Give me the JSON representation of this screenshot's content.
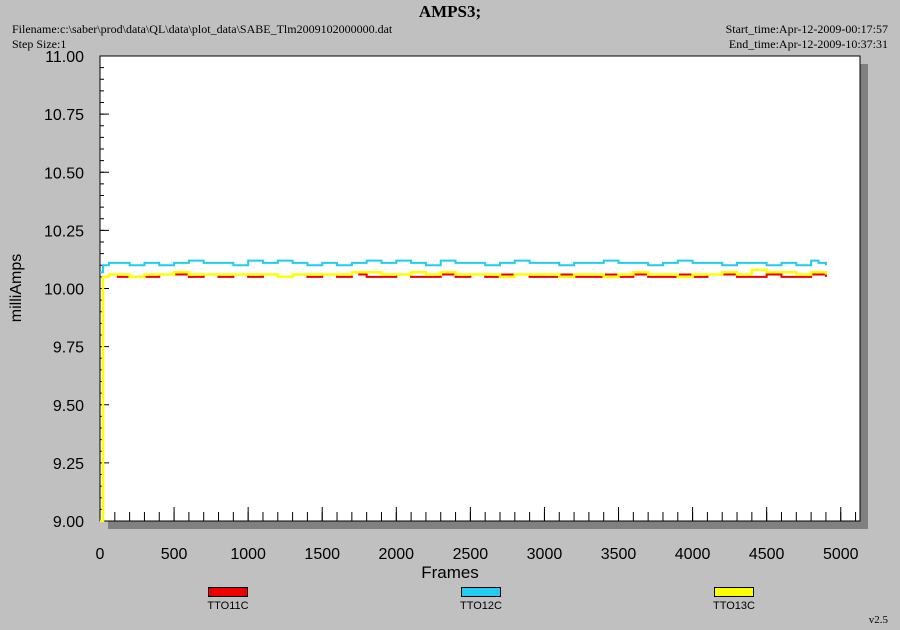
{
  "header": {
    "title": "AMPS3;",
    "filename": "Filename:c:\\saber\\prod\\data\\QL\\data\\plot_data\\SABE_Tlm2009102000000.dat",
    "step_size": "Step Size:1",
    "start_time": "Start_time:Apr-12-2009-00:17:57",
    "end_time": "End_time:Apr-12-2009-10:37:31"
  },
  "footer": {
    "version": "v2.5"
  },
  "colors": {
    "background": "#c0c0c0",
    "plot_area": "#ffffff",
    "shadow": "#808080"
  },
  "chart_data": {
    "type": "line",
    "xlabel": "Frames",
    "ylabel": "milliAmps",
    "xlim": [
      0,
      5130
    ],
    "ylim": [
      9.0,
      11.0
    ],
    "x_ticks": [
      0,
      500,
      1000,
      1500,
      2000,
      2500,
      3000,
      3500,
      4000,
      4500,
      5000
    ],
    "y_ticks": [
      9.0,
      9.25,
      9.5,
      9.75,
      10.0,
      10.25,
      10.5,
      10.75,
      11.0
    ],
    "x_tick_labels": [
      "0",
      "500",
      "1000",
      "1500",
      "2000",
      "2500",
      "3000",
      "3500",
      "4000",
      "4500",
      "5000"
    ],
    "y_tick_labels": [
      "9.00",
      "9.25",
      "9.50",
      "9.75",
      "10.00",
      "10.25",
      "10.50",
      "10.75",
      "11.00"
    ],
    "legend_placement": "bottom",
    "grid": false,
    "series": [
      {
        "name": "TTO11C",
        "color": "#ee0000",
        "x": [
          0,
          20,
          40,
          60,
          120,
          200,
          300,
          400,
          500,
          600,
          700,
          800,
          900,
          1000,
          1100,
          1200,
          1300,
          1400,
          1500,
          1600,
          1700,
          1750,
          1800,
          1900,
          2000,
          2100,
          2200,
          2300,
          2400,
          2500,
          2600,
          2700,
          2800,
          2900,
          3000,
          3100,
          3200,
          3300,
          3400,
          3500,
          3600,
          3700,
          3800,
          3900,
          4000,
          4100,
          4200,
          4300,
          4400,
          4500,
          4600,
          4700,
          4800,
          4900
        ],
        "values": [
          9.0,
          10.05,
          10.05,
          10.06,
          10.05,
          10.05,
          10.05,
          10.06,
          10.06,
          10.05,
          10.06,
          10.05,
          10.06,
          10.05,
          10.06,
          10.05,
          10.06,
          10.05,
          10.06,
          10.05,
          10.07,
          10.06,
          10.05,
          10.05,
          10.06,
          10.05,
          10.05,
          10.06,
          10.05,
          10.06,
          10.05,
          10.06,
          10.06,
          10.05,
          10.05,
          10.06,
          10.05,
          10.05,
          10.06,
          10.05,
          10.06,
          10.05,
          10.05,
          10.06,
          10.05,
          10.06,
          10.06,
          10.05,
          10.05,
          10.06,
          10.05,
          10.05,
          10.06,
          10.05
        ]
      },
      {
        "name": "TTO12C",
        "color": "#22ccee",
        "x": [
          0,
          20,
          40,
          60,
          120,
          200,
          300,
          400,
          500,
          600,
          700,
          800,
          900,
          1000,
          1100,
          1200,
          1300,
          1400,
          1500,
          1600,
          1700,
          1800,
          1900,
          2000,
          2100,
          2200,
          2300,
          2400,
          2500,
          2600,
          2700,
          2800,
          2900,
          3000,
          3100,
          3200,
          3300,
          3400,
          3500,
          3600,
          3700,
          3800,
          3900,
          4000,
          4100,
          4200,
          4300,
          4400,
          4500,
          4600,
          4700,
          4800,
          4850,
          4900
        ],
        "values": [
          10.07,
          10.1,
          10.1,
          10.11,
          10.11,
          10.1,
          10.11,
          10.1,
          10.11,
          10.12,
          10.11,
          10.11,
          10.1,
          10.12,
          10.11,
          10.12,
          10.11,
          10.1,
          10.11,
          10.1,
          10.11,
          10.12,
          10.11,
          10.12,
          10.11,
          10.1,
          10.12,
          10.11,
          10.11,
          10.1,
          10.11,
          10.12,
          10.11,
          10.11,
          10.1,
          10.11,
          10.11,
          10.12,
          10.11,
          10.11,
          10.1,
          10.11,
          10.12,
          10.11,
          10.11,
          10.1,
          10.11,
          10.11,
          10.1,
          10.11,
          10.1,
          10.12,
          10.11,
          10.1
        ]
      },
      {
        "name": "TTO13C",
        "color": "#ffff00",
        "x": [
          0,
          20,
          40,
          60,
          120,
          200,
          300,
          400,
          500,
          600,
          700,
          800,
          900,
          1000,
          1100,
          1200,
          1300,
          1400,
          1500,
          1600,
          1700,
          1800,
          1900,
          2000,
          2100,
          2200,
          2300,
          2400,
          2500,
          2600,
          2700,
          2800,
          2900,
          3000,
          3100,
          3200,
          3300,
          3400,
          3500,
          3600,
          3700,
          3800,
          3900,
          4000,
          4100,
          4200,
          4300,
          4400,
          4500,
          4600,
          4700,
          4800,
          4850,
          4900
        ],
        "values": [
          9.0,
          10.05,
          10.05,
          10.06,
          10.06,
          10.05,
          10.06,
          10.06,
          10.07,
          10.06,
          10.06,
          10.06,
          10.06,
          10.06,
          10.06,
          10.05,
          10.06,
          10.06,
          10.06,
          10.06,
          10.07,
          10.07,
          10.06,
          10.06,
          10.07,
          10.06,
          10.07,
          10.06,
          10.06,
          10.06,
          10.05,
          10.06,
          10.06,
          10.06,
          10.05,
          10.06,
          10.06,
          10.05,
          10.06,
          10.07,
          10.06,
          10.06,
          10.05,
          10.06,
          10.06,
          10.07,
          10.06,
          10.08,
          10.07,
          10.07,
          10.06,
          10.07,
          10.07,
          10.06
        ]
      }
    ]
  }
}
